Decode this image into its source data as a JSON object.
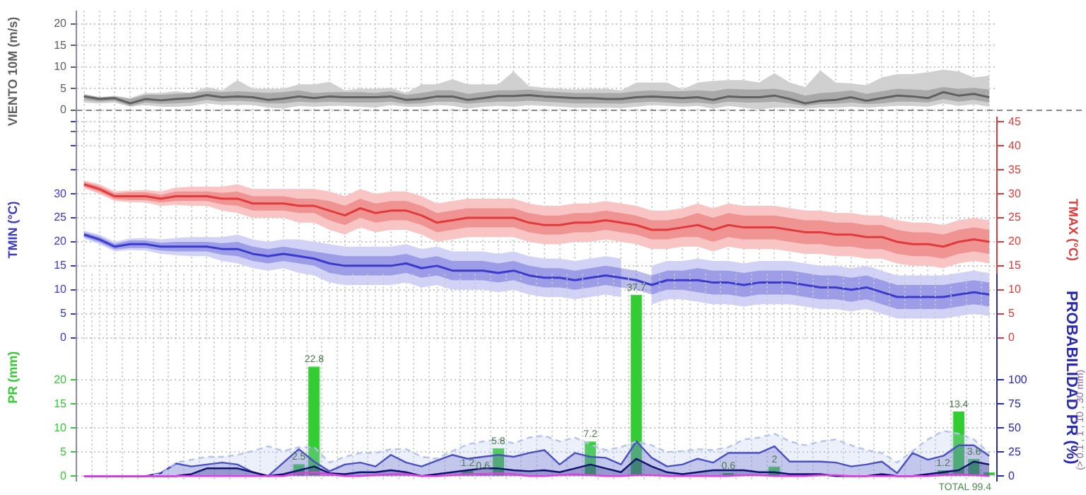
{
  "chart_data": [
    {
      "type": "line",
      "ylabel": "VIENTO 10M (m/s)",
      "tick_labels": "y",
      "grid": true,
      "categories": [
        null,
        null,
        null,
        null,
        null,
        null,
        null,
        null,
        null,
        null,
        null,
        null,
        null,
        null,
        null,
        null,
        null,
        null,
        null,
        null,
        null,
        null,
        null,
        null,
        null,
        null,
        null,
        null,
        null,
        null,
        null,
        null,
        null,
        null,
        null,
        null,
        null,
        null,
        null,
        null,
        null,
        null,
        null,
        null,
        null,
        null,
        null,
        null,
        null,
        null,
        null,
        null,
        null,
        null,
        null,
        null,
        null,
        null,
        null,
        null
      ],
      "ylim": [
        -5,
        23
      ],
      "yticks": [
        {
          "value": -5,
          "label": null
        },
        0,
        5,
        10,
        15,
        20
      ],
      "ref_lines": [
        {
          "axis": "y",
          "value": 0,
          "line_style": "dashed",
          "color": "#888888"
        }
      ],
      "series": [
        {
          "type": "line",
          "color": "#d0d0d0",
          "values": [
            null,
            null,
            null,
            null,
            null,
            null,
            null,
            null,
            null,
            null,
            null,
            null,
            null,
            null,
            null,
            null,
            null,
            null,
            null,
            null,
            null,
            null,
            null,
            null,
            null,
            null,
            null,
            null,
            null,
            null,
            null,
            null,
            null,
            null,
            null,
            null,
            null,
            null,
            null,
            null,
            null,
            null,
            null,
            null,
            null,
            null,
            null,
            null,
            null,
            null,
            null,
            null,
            null,
            null,
            null,
            null,
            null,
            null,
            null,
            null
          ],
          "lower": [
            1.8,
            1.6,
            1.8,
            0.8,
            1.2,
            0.8,
            0.8,
            1.0,
            1.6,
            1.2,
            1.2,
            1.2,
            0.6,
            0.4,
            1.0,
            0.8,
            1.0,
            1.0,
            0.8,
            0.6,
            1.2,
            0.8,
            0.8,
            1.2,
            1.0,
            0.4,
            0.8,
            1.0,
            0.8,
            1.2,
            1.0,
            0.8,
            0.6,
            0.6,
            0.6,
            0.5,
            0.8,
            1.2,
            1.0,
            0.8,
            1.0,
            0.4,
            1.0,
            0.6,
            0.2,
            0.6,
            0.6,
            0.4,
            0.6,
            0.6,
            0.8,
            0.6,
            0.8,
            1.0,
            1.0,
            0.8,
            1.6,
            1.0,
            1.4,
            0.8
          ],
          "upper": [
            3.6,
            3.0,
            3.4,
            2.8,
            4.0,
            4.0,
            4.4,
            4.0,
            5.4,
            4.6,
            7.0,
            5.0,
            5.0,
            5.0,
            6.0,
            6.0,
            6.6,
            4.6,
            5.0,
            5.0,
            5.2,
            4.0,
            6.0,
            6.0,
            7.2,
            6.0,
            6.0,
            6.0,
            9.0,
            5.6,
            5.2,
            5.0,
            4.8,
            5.0,
            5.0,
            4.6,
            6.4,
            6.4,
            6.4,
            4.8,
            6.4,
            6.8,
            7.0,
            7.0,
            6.4,
            8.6,
            6.4,
            5.4,
            9.2,
            6.4,
            6.2,
            5.8,
            7.6,
            8.4,
            8.4,
            8.8,
            9.4,
            9.0,
            7.6,
            8.0
          ]
        },
        {
          "type": "line",
          "color": "#606060",
          "values": [
            3.2,
            2.6,
            2.8,
            1.6,
            2.6,
            2.3,
            2.6,
            2.8,
            3.5,
            3.0,
            3.2,
            3.0,
            2.4,
            2.7,
            3.2,
            2.8,
            3.2,
            3.0,
            3.0,
            3.0,
            3.2,
            2.4,
            2.6,
            3.2,
            3.2,
            2.4,
            2.8,
            3.3,
            3.3,
            3.5,
            3.2,
            3.0,
            2.8,
            2.8,
            2.6,
            2.6,
            3.0,
            3.2,
            3.0,
            2.8,
            3.0,
            2.4,
            3.2,
            3.0,
            3.0,
            3.4,
            2.6,
            1.6,
            2.2,
            2.4,
            3.0,
            2.2,
            2.8,
            3.4,
            3.2,
            2.8,
            4.2,
            3.4,
            3.8,
            3.0
          ],
          "lower": [
            2.4,
            2.0,
            2.2,
            1.0,
            1.8,
            1.5,
            1.6,
            1.8,
            2.4,
            2.0,
            2.2,
            2.0,
            1.6,
            1.6,
            2.0,
            1.8,
            2.0,
            1.8,
            1.8,
            1.8,
            2.0,
            1.5,
            1.6,
            2.0,
            2.0,
            1.5,
            1.8,
            2.0,
            2.0,
            2.2,
            2.0,
            1.8,
            1.6,
            1.6,
            1.6,
            1.5,
            1.8,
            2.0,
            1.8,
            1.6,
            1.8,
            1.4,
            2.0,
            1.8,
            1.8,
            2.0,
            1.6,
            1.0,
            1.4,
            1.5,
            1.8,
            1.4,
            1.6,
            2.0,
            2.0,
            1.8,
            2.6,
            2.0,
            2.4,
            1.8
          ],
          "upper": [
            3.8,
            3.0,
            3.2,
            2.6,
            3.6,
            3.6,
            3.8,
            4.0,
            4.4,
            4.2,
            4.4,
            4.2,
            4.0,
            4.2,
            4.6,
            4.0,
            4.2,
            4.2,
            4.2,
            4.0,
            4.4,
            3.6,
            4.0,
            4.6,
            4.6,
            3.8,
            4.2,
            4.6,
            4.6,
            4.8,
            4.4,
            4.2,
            4.0,
            4.0,
            4.0,
            4.0,
            4.4,
            4.6,
            4.4,
            4.4,
            4.6,
            4.4,
            5.0,
            4.8,
            4.8,
            5.0,
            4.4,
            3.4,
            4.0,
            4.2,
            4.6,
            3.8,
            4.4,
            5.0,
            4.8,
            4.6,
            5.4,
            5.0,
            5.2,
            4.8
          ]
        }
      ]
    },
    {
      "type": "line",
      "ylabel": "TMIN (°C)",
      "y2label": "TMAX (°C)",
      "tick_labels": "y",
      "grid": true,
      "categories": [
        null,
        null,
        null,
        null,
        null,
        null,
        null,
        null,
        null,
        null,
        null,
        null,
        null,
        null,
        null,
        null,
        null,
        null,
        null,
        null,
        null,
        null,
        null,
        null,
        null,
        null,
        null,
        null,
        null,
        null,
        null,
        null,
        null,
        null,
        null,
        null,
        null,
        null,
        null,
        null,
        null,
        null,
        null,
        null,
        null,
        null,
        null,
        null,
        null,
        null,
        null,
        null,
        null,
        null,
        null,
        null,
        null,
        null,
        null,
        null
      ],
      "ylim": [
        -1,
        46
      ],
      "yticks": [
        0,
        5,
        10,
        15,
        20,
        25,
        30,
        {
          "value": 35,
          "label": null
        },
        {
          "value": 40,
          "label": null
        },
        {
          "value": 45,
          "label": null
        }
      ],
      "y2lim": [
        -1,
        46
      ],
      "y2ticks": [
        0,
        5,
        10,
        15,
        20,
        25,
        30,
        35,
        40,
        45
      ],
      "series": [
        {
          "type": "line",
          "axis": "y2",
          "color": "#f8c4c4",
          "values": [
            null,
            null,
            null,
            null,
            null,
            null,
            null,
            null,
            null,
            null,
            null,
            null,
            null,
            null,
            null,
            null,
            null,
            null,
            null,
            null,
            null,
            null,
            null,
            null,
            null,
            null,
            null,
            null,
            null,
            null,
            null,
            null,
            null,
            null,
            null,
            null,
            null,
            null,
            null,
            null,
            null,
            null,
            null,
            null,
            null,
            null,
            null,
            null,
            null,
            null,
            null,
            null,
            null,
            null,
            null,
            null,
            null,
            null,
            null,
            null
          ],
          "lower": [
            31.2,
            30,
            28.5,
            28.3,
            28.2,
            27.5,
            27.7,
            27.5,
            27.5,
            26.5,
            26,
            25,
            25,
            25,
            24,
            24,
            22.5,
            21.5,
            23,
            22,
            22.5,
            22.5,
            21.5,
            20,
            20.5,
            21,
            21,
            21,
            21,
            20,
            19.5,
            19.5,
            20,
            20,
            20.5,
            20,
            19.5,
            18.5,
            18.5,
            19,
            19,
            18,
            19,
            18.5,
            18.5,
            18.5,
            18,
            17.5,
            17.5,
            17,
            17,
            16.5,
            16.5,
            15.5,
            15,
            15,
            14.5,
            15.5,
            16,
            15.5
          ],
          "upper": [
            32.8,
            32,
            30.5,
            30.7,
            30.8,
            30.5,
            31.3,
            31.5,
            31.5,
            31.5,
            32,
            31,
            31,
            31,
            31,
            31,
            30.5,
            29.5,
            31,
            30,
            30.5,
            30.5,
            29.5,
            28,
            28.5,
            29,
            29,
            29,
            29,
            28,
            27.5,
            27.5,
            28,
            28,
            28.5,
            28,
            27.5,
            26.5,
            26.5,
            27,
            28,
            27,
            28,
            27.5,
            27.5,
            27.5,
            27,
            26.5,
            26.5,
            26,
            26,
            25.5,
            25.5,
            24.5,
            24,
            24,
            23.5,
            24.5,
            25,
            24.5
          ]
        },
        {
          "type": "line",
          "color": "#d2d2f6",
          "values": [
            null,
            null,
            null,
            null,
            null,
            null,
            null,
            null,
            null,
            null,
            null,
            null,
            null,
            null,
            null,
            null,
            null,
            null,
            null,
            null,
            null,
            null,
            null,
            null,
            null,
            null,
            null,
            null,
            null,
            null,
            null,
            null,
            null,
            null,
            null,
            null,
            null,
            null,
            null,
            null,
            null,
            null,
            null,
            null,
            null,
            null,
            null,
            null,
            null,
            null,
            null,
            null,
            null,
            null,
            null,
            null,
            null,
            null,
            null,
            null
          ],
          "lower": [
            20.7,
            19.5,
            18,
            18.3,
            18.2,
            17.5,
            17.2,
            17,
            17,
            16,
            15.5,
            14.5,
            14,
            14.5,
            13.5,
            13,
            11.5,
            11,
            11,
            11,
            11,
            11.5,
            10.5,
            11,
            10,
            10,
            10,
            9.5,
            10,
            9,
            8.5,
            8.5,
            8,
            8.5,
            9,
            8.5,
            null,
            7,
            8,
            8,
            7.5,
            7,
            7,
            6.5,
            7,
            7,
            7,
            6.5,
            6,
            6,
            5.5,
            6,
            5,
            4,
            4,
            4,
            4,
            4.5,
            5,
            4.5
          ],
          "upper": [
            22.3,
            21.5,
            20,
            20.7,
            20.8,
            20.5,
            20.8,
            21,
            21,
            21,
            21.5,
            20.5,
            20,
            20.5,
            20.5,
            20,
            19.5,
            19,
            19,
            19,
            19,
            19.5,
            18.5,
            19,
            18,
            18,
            18,
            17.5,
            18,
            17,
            16.5,
            16.5,
            16,
            16.5,
            17,
            16.5,
            null,
            15,
            16,
            16,
            16.5,
            16,
            16,
            15.5,
            16,
            16,
            16,
            15.5,
            15,
            15,
            14.5,
            15,
            14,
            13,
            13,
            13,
            13,
            13.5,
            14,
            13.5
          ]
        },
        {
          "type": "line",
          "axis": "y2",
          "color": "#e23a3a",
          "values": [
            32,
            31,
            29.5,
            29.5,
            29.5,
            29,
            29.5,
            29.5,
            29.5,
            29,
            29,
            28,
            28,
            28,
            27.5,
            27.5,
            26.5,
            25.5,
            27,
            26,
            26.5,
            26.5,
            25.5,
            24,
            24.5,
            25,
            25,
            25,
            25,
            24,
            23.5,
            23.5,
            24,
            24,
            24.5,
            24,
            23.5,
            22.5,
            22.5,
            23,
            23.5,
            22.5,
            23.5,
            23,
            23,
            23,
            22.5,
            22,
            22,
            21.5,
            21.5,
            21,
            21,
            20,
            19.5,
            19.5,
            19,
            20,
            20.5,
            20
          ],
          "lower": [
            31.5,
            30.4,
            28.9,
            28.7,
            28.7,
            28.2,
            28.5,
            28.5,
            28.5,
            27.8,
            27.5,
            26.5,
            26.5,
            26.5,
            26,
            26,
            24.5,
            23.5,
            25,
            24,
            24.5,
            24.5,
            23.5,
            22,
            22.5,
            23,
            23,
            23,
            23,
            22,
            21.5,
            21.5,
            22,
            22,
            22.5,
            22,
            21.5,
            20.5,
            20.5,
            21,
            21,
            20,
            21,
            20.5,
            20.5,
            20.5,
            20,
            19.5,
            19.5,
            19,
            19,
            18.5,
            18.5,
            17.5,
            17,
            17,
            16.5,
            17.5,
            18,
            17.5
          ],
          "upper": [
            32.5,
            31.6,
            30.1,
            30.3,
            30.3,
            29.8,
            30.5,
            30.5,
            30.5,
            30.2,
            30.5,
            29.5,
            29.5,
            29.5,
            29,
            29,
            28.5,
            27.5,
            29,
            28,
            28.5,
            28.5,
            27.5,
            26,
            26.5,
            27,
            27,
            27,
            27,
            26,
            25.5,
            25.5,
            26,
            26,
            26.5,
            26,
            25.5,
            24.5,
            24.5,
            25,
            26,
            25,
            26,
            25.5,
            25.5,
            25.5,
            25,
            24.5,
            24.5,
            24,
            24,
            23.5,
            23.5,
            22.5,
            22,
            22,
            21.5,
            22.5,
            23,
            22.5
          ]
        },
        {
          "type": "line",
          "color": "#3a3acc",
          "values": [
            21.5,
            20.5,
            19,
            19.5,
            19.5,
            19,
            19,
            19,
            19,
            18.5,
            18.5,
            17.5,
            17,
            17.5,
            17,
            16.5,
            15.5,
            15,
            15,
            15,
            15,
            15.5,
            14.5,
            15,
            14,
            14,
            14,
            13.5,
            14,
            13,
            12.5,
            12.5,
            12,
            12.5,
            13,
            12.5,
            12,
            11,
            12,
            12,
            12,
            11.5,
            11.5,
            11,
            11.5,
            11.5,
            11.5,
            11,
            10.5,
            10.5,
            10,
            10.5,
            9.5,
            8.5,
            8.5,
            8.5,
            8.5,
            9,
            9.5,
            9
          ],
          "lower": [
            21,
            19.9,
            18.4,
            18.7,
            18.7,
            18.2,
            18,
            18,
            18,
            17.3,
            17,
            16,
            15.5,
            16,
            15.5,
            15,
            13.5,
            13,
            13,
            13,
            13,
            13.5,
            12.5,
            13,
            12,
            12,
            12,
            11.5,
            12,
            11,
            10.5,
            10.5,
            10,
            10.5,
            11,
            10.5,
            10,
            9,
            10,
            10,
            9.5,
            9,
            9,
            8.5,
            9,
            9,
            9,
            8.5,
            8,
            8,
            7.5,
            8,
            7,
            6,
            6,
            6,
            6,
            6.5,
            7,
            6.5
          ],
          "upper": [
            22,
            21.1,
            19.6,
            20.3,
            20.3,
            19.8,
            20,
            20,
            20,
            19.7,
            20,
            19,
            18.5,
            19,
            18.5,
            18,
            17.5,
            17,
            17,
            17,
            17,
            17.5,
            16.5,
            17,
            16,
            16,
            16,
            15.5,
            16,
            15,
            14.5,
            14.5,
            14,
            14.5,
            15,
            14.5,
            14,
            13,
            14,
            14,
            14.5,
            14,
            14,
            13.5,
            14,
            14,
            14,
            13.5,
            13,
            13,
            12.5,
            13,
            12,
            11,
            11,
            11,
            11,
            11.5,
            12,
            11.5
          ]
        }
      ]
    },
    {
      "type": "bar",
      "ylabel": "PR (mm)",
      "y2label": "PROBABILIDAD PR (%)",
      "tick_labels": "y",
      "grid": true,
      "categories": [
        null,
        null,
        null,
        null,
        null,
        null,
        null,
        null,
        null,
        null,
        null,
        null,
        null,
        null,
        null,
        null,
        null,
        null,
        null,
        null,
        null,
        null,
        null,
        null,
        null,
        null,
        null,
        null,
        null,
        null,
        null,
        null,
        null,
        null,
        null,
        null,
        null,
        null,
        null,
        null,
        null,
        null,
        null,
        null,
        null,
        null,
        null,
        null,
        null,
        null,
        null,
        null,
        null,
        null,
        null,
        null,
        null,
        null,
        null,
        null
      ],
      "ylim": [
        -1,
        42
      ],
      "yticks": [
        0,
        5,
        10,
        15,
        20
      ],
      "y2lim": [
        -5,
        210
      ],
      "y2ticks": [
        0,
        25,
        50,
        75,
        100
      ],
      "annotations": [
        "TOTAL 99.4",
        "(> 0.1 , 1 , 10 , 30 mm)"
      ],
      "series": [
        {
          "type": "bar",
          "color": "#33cc33",
          "values": [
            null,
            null,
            null,
            null,
            null,
            null,
            null,
            null,
            null,
            null,
            null,
            null,
            null,
            null,
            2.5,
            22.8,
            null,
            null,
            null,
            null,
            null,
            null,
            null,
            null,
            null,
            1.2,
            0.6,
            5.8,
            null,
            null,
            null,
            null,
            null,
            7.2,
            null,
            null,
            37.7,
            null,
            null,
            null,
            null,
            null,
            0.6,
            null,
            null,
            2,
            null,
            null,
            null,
            null,
            null,
            null,
            null,
            null,
            null,
            null,
            1.2,
            13.4,
            3.6,
            0.8
          ],
          "value_labels": [
            null,
            null,
            null,
            null,
            null,
            null,
            null,
            null,
            null,
            null,
            null,
            null,
            null,
            null,
            "2.5",
            "22.8",
            null,
            null,
            null,
            null,
            null,
            null,
            null,
            null,
            null,
            "1.2",
            "0.6",
            "5.8",
            null,
            null,
            null,
            null,
            null,
            "7.2",
            null,
            null,
            "37.7",
            null,
            null,
            null,
            null,
            null,
            "0.6",
            null,
            null,
            "2",
            null,
            null,
            null,
            null,
            null,
            null,
            null,
            null,
            null,
            null,
            "1.2",
            "13.4",
            "3.6",
            null
          ]
        },
        {
          "type": "area",
          "axis": "y2",
          "color": "#2828b4",
          "values": [
            0,
            0,
            0,
            0,
            0,
            3,
            13,
            10,
            12,
            14,
            12,
            4,
            0,
            14,
            28,
            15,
            5,
            12,
            14,
            10,
            22,
            14,
            10,
            16,
            22,
            18,
            20,
            22,
            20,
            24,
            27,
            12,
            24,
            20,
            19,
            12,
            36,
            19,
            10,
            12,
            18,
            14,
            24,
            24,
            24,
            31,
            15,
            15,
            15,
            14,
            10,
            12,
            15,
            3,
            24,
            17,
            21,
            32,
            32,
            21
          ]
        },
        {
          "type": "area",
          "axis": "y2",
          "color": "#b4c4ec",
          "line_style": "dashed",
          "values": [
            0,
            0,
            0,
            0,
            0,
            2,
            14,
            17,
            20,
            20,
            22,
            26,
            31,
            26,
            30,
            30,
            14,
            20,
            24,
            24,
            28,
            28,
            20,
            18,
            26,
            33,
            36,
            38,
            34,
            40,
            42,
            36,
            40,
            33,
            27,
            30,
            36,
            32,
            25,
            26,
            28,
            27,
            30,
            38,
            40,
            44,
            36,
            32,
            36,
            38,
            32,
            27,
            24,
            14,
            26,
            38,
            47,
            44,
            38,
            24
          ]
        },
        {
          "type": "area",
          "axis": "y2",
          "color": "#101070",
          "values": [
            0,
            0,
            0,
            0,
            0,
            0,
            0,
            2,
            8,
            8,
            8,
            4,
            0,
            2,
            6,
            10,
            3,
            2,
            4,
            4,
            6,
            4,
            0,
            2,
            4,
            6,
            8,
            8,
            6,
            5,
            6,
            4,
            8,
            12,
            8,
            4,
            18,
            10,
            4,
            2,
            4,
            6,
            6,
            6,
            4,
            4,
            2,
            2,
            2,
            0,
            0,
            0,
            2,
            0,
            0,
            2,
            4,
            6,
            15,
            12
          ]
        },
        {
          "type": "area",
          "axis": "y2",
          "color": "#e040e0",
          "values": [
            0,
            0,
            0,
            0,
            0,
            0,
            0,
            0,
            0,
            0,
            0,
            0,
            0,
            0,
            3,
            4,
            2,
            0,
            0,
            1,
            2,
            2,
            0,
            0,
            1,
            2,
            2,
            3,
            2,
            0,
            0,
            1,
            2,
            1,
            0,
            0,
            1,
            1,
            0,
            0,
            0,
            0,
            0,
            1,
            1,
            0,
            0,
            0,
            1,
            1,
            0,
            0,
            0,
            0,
            0,
            0,
            1,
            2,
            1,
            0
          ]
        }
      ]
    }
  ]
}
